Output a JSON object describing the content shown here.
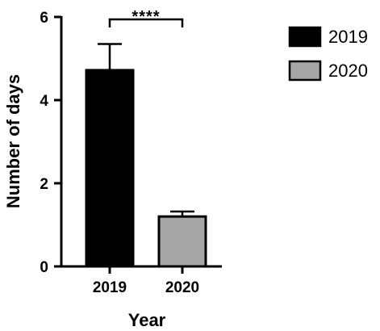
{
  "chart_data": {
    "type": "bar",
    "categories": [
      "2019",
      "2020"
    ],
    "values": [
      4.72,
      1.2
    ],
    "error_upper": [
      5.35,
      1.32
    ],
    "bar_colors": [
      "#000000",
      "#a6a6a6"
    ],
    "xlabel": "Year",
    "ylabel": "Number of days",
    "ylim": [
      0,
      6
    ],
    "yticks": [
      "0",
      "2",
      "4",
      "6"
    ],
    "grid": false,
    "legend": {
      "placement": "top-right",
      "entries": [
        {
          "label": "2019",
          "color": "#000000"
        },
        {
          "label": "2020",
          "color": "#a6a6a6"
        }
      ]
    },
    "annotations": [
      {
        "text": "****",
        "between": [
          "2019",
          "2020"
        ]
      }
    ]
  }
}
